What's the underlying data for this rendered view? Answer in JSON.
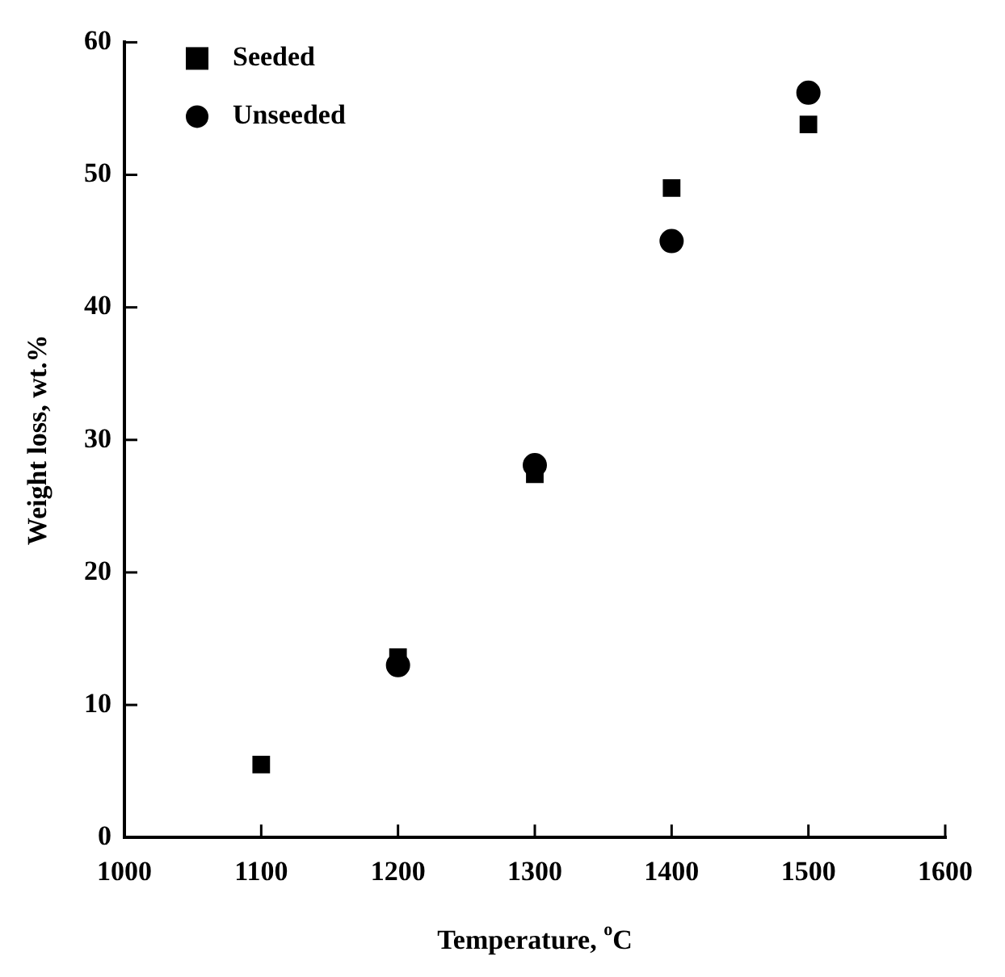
{
  "chart_data": {
    "type": "scatter",
    "xlabel": "Temperature, $^{o}$C",
    "ylabel": "Weight loss, wt.%",
    "xlim": [
      1000,
      1600
    ],
    "xticks": [
      1000,
      1100,
      1200,
      1300,
      1400,
      1500,
      1600
    ],
    "ylim": [
      0,
      60
    ],
    "yticks": [
      0,
      10,
      20,
      30,
      40,
      50,
      60
    ],
    "grid": false,
    "legend": "top left",
    "series": [
      {
        "name": "Seeded",
        "color": "#000000",
        "marker": "square",
        "x": [
          1100,
          1200,
          1300,
          1400,
          1500
        ],
        "values": [
          5.5,
          13.6,
          27.4,
          49.0,
          53.8
        ]
      },
      {
        "name": "Unseeded",
        "color": "#000000",
        "marker": "circle",
        "x": [
          1200,
          1300,
          1400,
          1500
        ],
        "values": [
          13.0,
          28.1,
          45.0,
          56.2
        ]
      }
    ]
  }
}
